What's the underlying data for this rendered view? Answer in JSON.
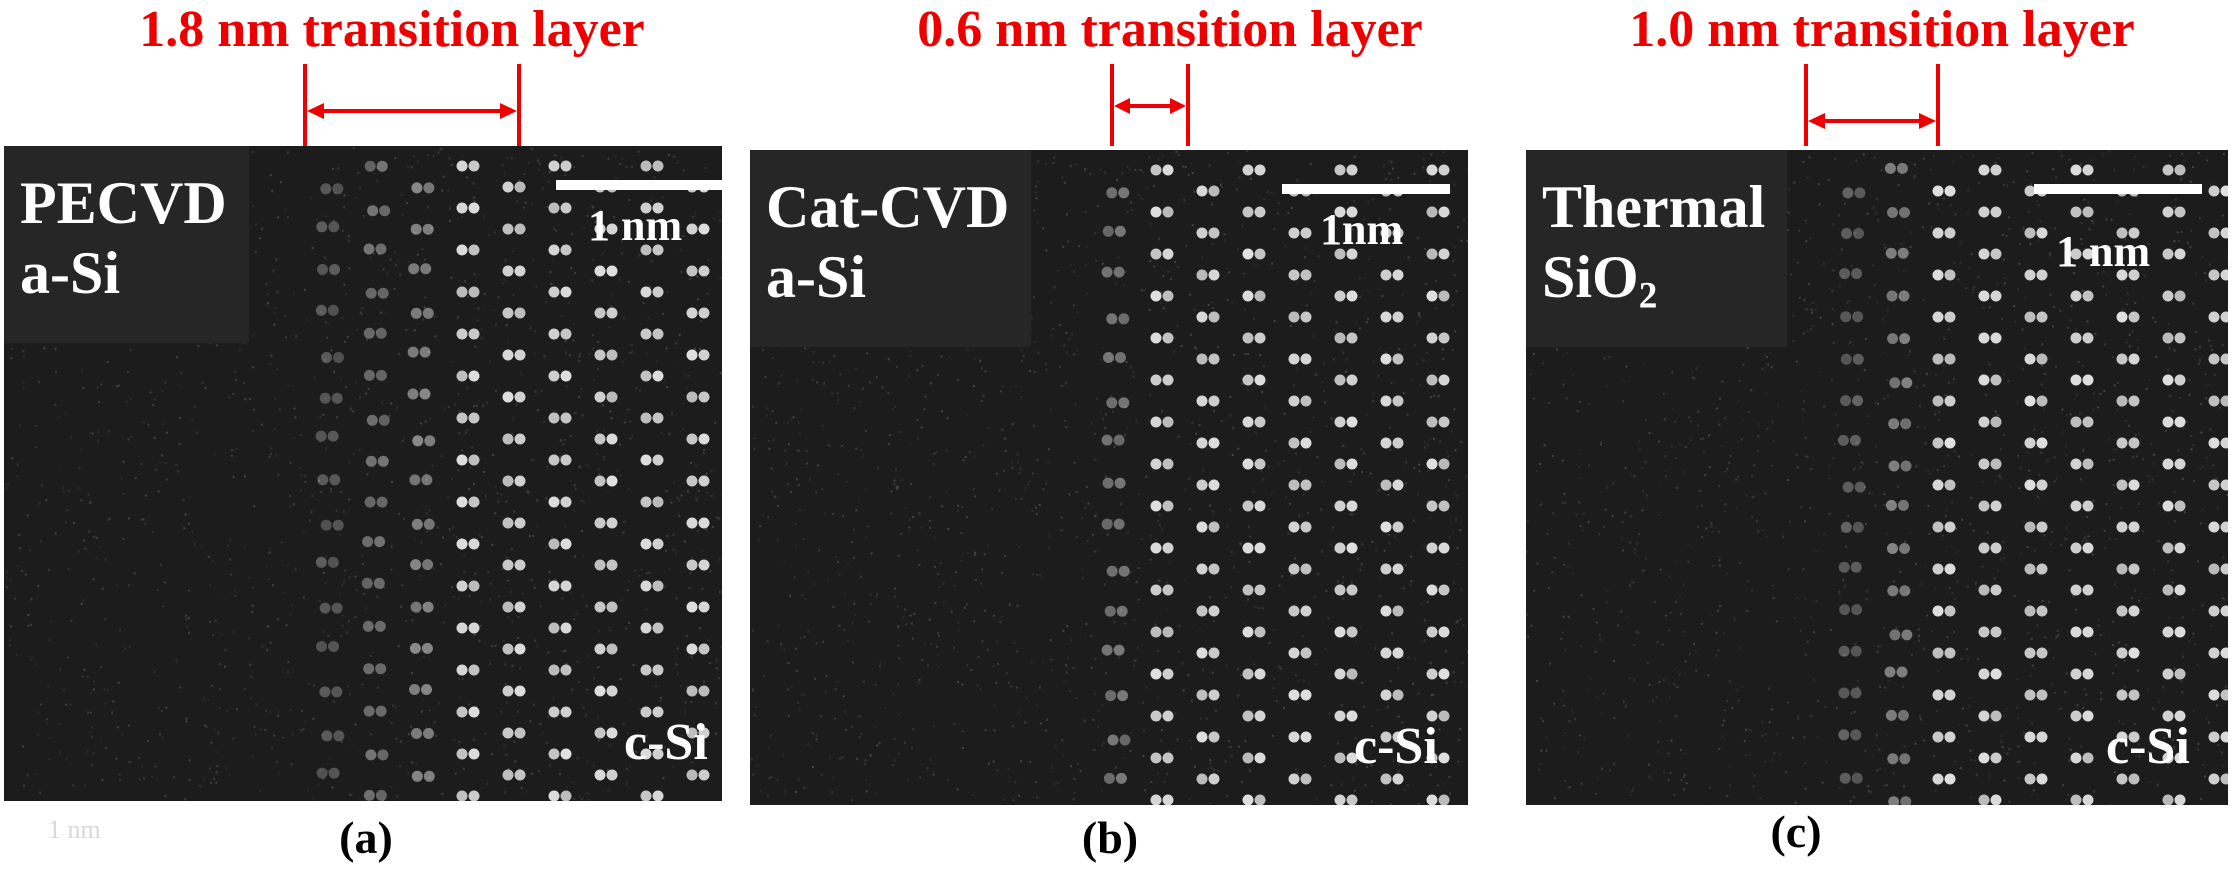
{
  "panels": [
    {
      "annotation": "1.8 nm transition layer",
      "material_line1": "PECVD",
      "material_line2": "a-Si",
      "material_sub": "",
      "scalebar_label": "1 nm",
      "phase_label": "c-Si",
      "caption": "(a)"
    },
    {
      "annotation": "0.6 nm transition layer",
      "material_line1": "Cat-CVD",
      "material_line2": "a-Si",
      "material_sub": "",
      "scalebar_label": "1nm",
      "phase_label": "c-Si",
      "caption": "(b)"
    },
    {
      "annotation": "1.0 nm transition layer",
      "material_line1": "Thermal",
      "material_line2": "SiO",
      "material_sub": "2",
      "scalebar_label": "1 nm",
      "phase_label": "c-Si",
      "caption": "(c)"
    }
  ],
  "faint_text": "1 nm",
  "colors": {
    "annotation": "#ee0000",
    "image_background": "#1c1c1c",
    "label_box": "#262626",
    "atom": "#ffffff"
  }
}
